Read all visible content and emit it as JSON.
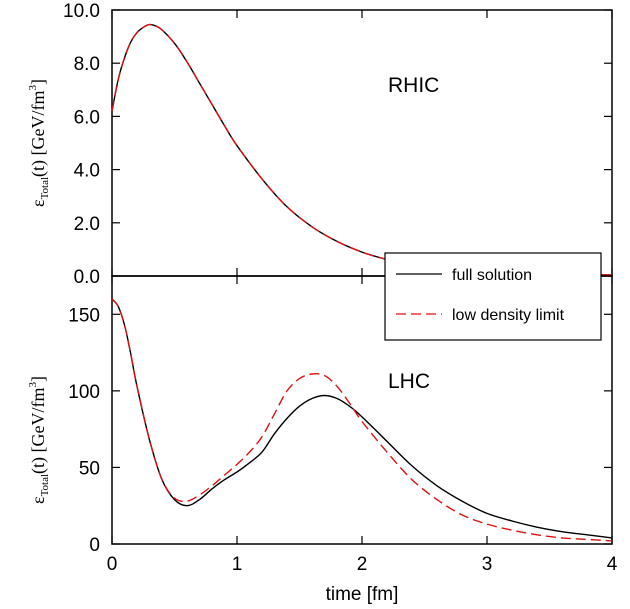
{
  "xlabel": "time [fm]",
  "colors": {
    "full": "#000000",
    "low": "#dd1111"
  },
  "legend": {
    "entries": [
      "full solution",
      "low density limit"
    ]
  },
  "chart_data": [
    {
      "type": "line",
      "panel_label": "RHIC",
      "ylabel_main": "ε",
      "ylabel_sub": "Total",
      "ylabel_rest": "(t) [GeV/fm",
      "ylabel_sup": "3",
      "ylabel_close": "]",
      "xlim": [
        0,
        4
      ],
      "ylim": [
        0,
        10
      ],
      "xticks": [
        "0",
        "1",
        "2",
        "3",
        "4"
      ],
      "show_xtick_labels": false,
      "yticks": [
        "0.0",
        "2.0",
        "4.0",
        "6.0",
        "8.0",
        "10.0"
      ],
      "ytick_values": [
        0,
        2,
        4,
        6,
        8,
        10
      ],
      "series": [
        {
          "name": "full solution",
          "style": "solid",
          "x": [
            0,
            0.05,
            0.1,
            0.15,
            0.2,
            0.25,
            0.3,
            0.35,
            0.4,
            0.5,
            0.6,
            0.7,
            0.8,
            0.9,
            1.0,
            1.2,
            1.4,
            1.6,
            1.8,
            2.0,
            2.2,
            2.4,
            2.6,
            2.8,
            3.0,
            3.2,
            3.4,
            3.6,
            3.8,
            4.0
          ],
          "y": [
            6.2,
            7.4,
            8.2,
            8.8,
            9.15,
            9.35,
            9.45,
            9.4,
            9.25,
            8.75,
            8.05,
            7.25,
            6.45,
            5.65,
            4.9,
            3.65,
            2.6,
            1.85,
            1.3,
            0.9,
            0.62,
            0.43,
            0.3,
            0.22,
            0.16,
            0.12,
            0.09,
            0.07,
            0.05,
            0.04
          ]
        },
        {
          "name": "low density limit",
          "style": "dashed",
          "x": [
            0,
            0.05,
            0.1,
            0.15,
            0.2,
            0.25,
            0.3,
            0.35,
            0.4,
            0.5,
            0.6,
            0.7,
            0.8,
            0.9,
            1.0,
            1.2,
            1.4,
            1.6,
            1.8,
            2.0,
            2.2,
            2.4,
            2.6,
            2.8,
            3.0,
            3.2,
            3.4,
            3.6,
            3.8,
            4.0
          ],
          "y": [
            6.2,
            7.4,
            8.2,
            8.8,
            9.15,
            9.35,
            9.45,
            9.4,
            9.25,
            8.75,
            8.05,
            7.25,
            6.45,
            5.65,
            4.9,
            3.65,
            2.6,
            1.85,
            1.3,
            0.9,
            0.62,
            0.43,
            0.3,
            0.22,
            0.16,
            0.12,
            0.09,
            0.07,
            0.05,
            0.04
          ]
        }
      ]
    },
    {
      "type": "line",
      "panel_label": "LHC",
      "ylabel_main": "ε",
      "ylabel_sub": "Total",
      "ylabel_rest": "(t) [GeV/fm",
      "ylabel_sup": "3",
      "ylabel_close": "]",
      "xlim": [
        0,
        4
      ],
      "ylim": [
        0,
        175
      ],
      "xticks": [
        "0",
        "1",
        "2",
        "3",
        "4"
      ],
      "show_xtick_labels": true,
      "yticks": [
        "0",
        "50",
        "100",
        "150"
      ],
      "ytick_values": [
        0,
        50,
        100,
        150
      ],
      "series": [
        {
          "name": "full solution",
          "style": "solid",
          "x": [
            0,
            0.05,
            0.1,
            0.15,
            0.2,
            0.3,
            0.4,
            0.5,
            0.6,
            0.7,
            0.8,
            0.9,
            1.0,
            1.1,
            1.2,
            1.3,
            1.4,
            1.5,
            1.6,
            1.7,
            1.8,
            1.9,
            2.0,
            2.2,
            2.4,
            2.6,
            2.8,
            3.0,
            3.2,
            3.4,
            3.6,
            3.8,
            4.0
          ],
          "y": [
            160,
            155,
            143,
            124,
            103,
            68,
            42,
            29,
            25,
            29,
            36,
            42,
            47,
            53,
            60,
            72,
            82,
            90,
            95,
            97,
            95,
            90,
            83,
            67,
            51,
            38,
            28,
            20,
            15,
            11,
            8,
            6,
            4
          ]
        },
        {
          "name": "low density limit",
          "style": "dashed",
          "x": [
            0,
            0.05,
            0.1,
            0.15,
            0.2,
            0.3,
            0.4,
            0.5,
            0.6,
            0.7,
            0.8,
            0.9,
            1.0,
            1.1,
            1.2,
            1.3,
            1.4,
            1.5,
            1.6,
            1.7,
            1.8,
            1.9,
            2.0,
            2.2,
            2.4,
            2.6,
            2.8,
            3.0,
            3.2,
            3.4,
            3.6,
            3.8,
            4.0
          ],
          "y": [
            160,
            155,
            143,
            124,
            103,
            68,
            42,
            30,
            28,
            32,
            38,
            45,
            52,
            60,
            70,
            85,
            100,
            108,
            111,
            110,
            103,
            92,
            80,
            60,
            42,
            29,
            19,
            13,
            9,
            6,
            4,
            3,
            2
          ]
        }
      ]
    }
  ]
}
